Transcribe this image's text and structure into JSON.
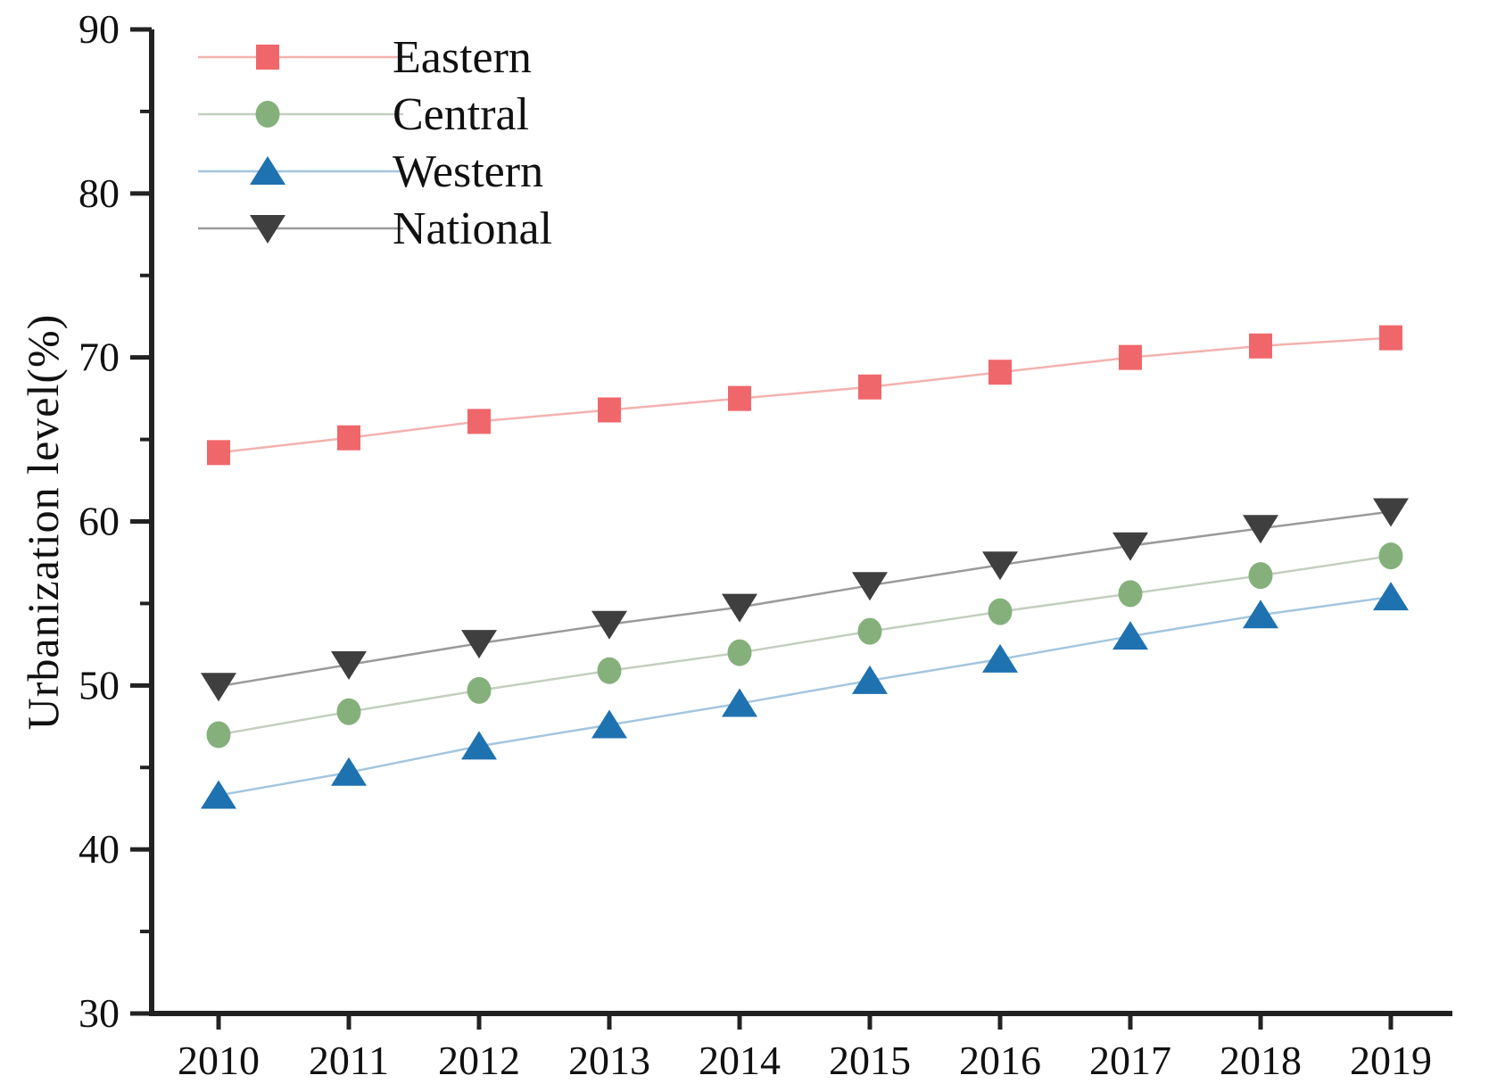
{
  "figure": {
    "y_axis_title": "Urbanization level(%)",
    "text_color": "#111111",
    "axis_color": "#222222",
    "background": "#ffffff"
  },
  "chart_data": {
    "type": "line",
    "title": "",
    "xlabel": "",
    "ylabel": "Urbanization level(%)",
    "x": [
      2010,
      2011,
      2012,
      2013,
      2014,
      2015,
      2016,
      2017,
      2018,
      2019
    ],
    "ylim": [
      30,
      90
    ],
    "y_major_ticks": [
      30,
      40,
      50,
      60,
      70,
      80,
      90
    ],
    "y_minor_ticks": [
      35,
      45,
      55,
      65,
      75,
      85
    ],
    "grid": "off",
    "legend_position": "top-left",
    "series": [
      {
        "name": "Eastern",
        "marker": "square",
        "marker_color": "#f0676b",
        "line_color": "#f2b2b0",
        "values": [
          64.2,
          65.1,
          66.1,
          66.8,
          67.5,
          68.2,
          69.1,
          70.0,
          70.7,
          71.2
        ]
      },
      {
        "name": "Central",
        "marker": "circle",
        "marker_color": "#85b07c",
        "line_color": "#c3cfc0",
        "values": [
          47.0,
          48.4,
          49.7,
          50.9,
          52.0,
          53.3,
          54.5,
          55.6,
          56.7,
          57.9
        ]
      },
      {
        "name": "Western",
        "marker": "triangle-up",
        "marker_color": "#1e72b0",
        "line_color": "#a4c6de",
        "values": [
          43.3,
          44.7,
          46.3,
          47.6,
          48.9,
          50.3,
          51.6,
          53.0,
          54.3,
          55.4
        ]
      },
      {
        "name": "National",
        "marker": "triangle-down",
        "marker_color": "#3f3f3f",
        "line_color": "#9a9a9a",
        "values": [
          49.95,
          51.27,
          52.57,
          53.73,
          54.77,
          56.1,
          57.35,
          58.52,
          59.58,
          60.6
        ]
      }
    ]
  },
  "layout_values": {
    "x_tick_labels": [
      "2010",
      "2011",
      "2012",
      "2013",
      "2014",
      "2015",
      "2016",
      "2017",
      "2018",
      "2019"
    ],
    "y_tick_labels": [
      "30",
      "40",
      "50",
      "60",
      "70",
      "80",
      "90"
    ]
  }
}
